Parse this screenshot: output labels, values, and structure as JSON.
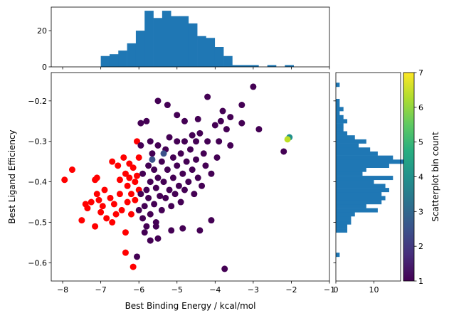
{
  "chart_data": [
    {
      "type": "scatter",
      "xlabel": "Best Binding Energy / kcal/mol",
      "ylabel": "Best Ligand Efficiency",
      "xlim": [
        -8.3,
        -1.0
      ],
      "ylim": [
        -0.645,
        -0.13
      ],
      "xticks": [
        -8,
        -7,
        -6,
        -5,
        -4,
        -3,
        -2,
        -1
      ],
      "xtick_labels": [
        "−8",
        "−7",
        "−6",
        "−5",
        "−4",
        "−3",
        "−2",
        "−1"
      ],
      "yticks": [
        -0.6,
        -0.5,
        -0.4,
        -0.3,
        -0.2
      ],
      "ytick_labels": [
        "−0.6",
        "−0.5",
        "−0.4",
        "−0.3",
        "−0.2"
      ],
      "colormap": "viridis",
      "series": [
        {
          "color": "#ff0000",
          "points": [
            [
              -7.95,
              -0.395
            ],
            [
              -7.75,
              -0.37
            ],
            [
              -7.5,
              -0.495
            ],
            [
              -7.4,
              -0.455
            ],
            [
              -7.35,
              -0.465
            ],
            [
              -7.25,
              -0.45
            ],
            [
              -7.15,
              -0.51
            ],
            [
              -7.15,
              -0.395
            ],
            [
              -7.1,
              -0.39
            ],
            [
              -7.1,
              -0.43
            ],
            [
              -7.05,
              -0.445
            ],
            [
              -7.0,
              -0.475
            ],
            [
              -6.95,
              -0.46
            ],
            [
              -6.9,
              -0.42
            ],
            [
              -6.85,
              -0.49
            ],
            [
              -6.75,
              -0.44
            ],
            [
              -6.7,
              -0.5
            ],
            [
              -6.7,
              -0.35
            ],
            [
              -6.65,
              -0.455
            ],
            [
              -6.6,
              -0.48
            ],
            [
              -6.55,
              -0.36
            ],
            [
              -6.5,
              -0.395
            ],
            [
              -6.5,
              -0.43
            ],
            [
              -6.45,
              -0.47
            ],
            [
              -6.4,
              -0.34
            ],
            [
              -6.35,
              -0.38
            ],
            [
              -6.35,
              -0.525
            ],
            [
              -6.3,
              -0.41
            ],
            [
              -6.3,
              -0.45
            ],
            [
              -6.25,
              -0.39
            ],
            [
              -6.2,
              -0.43
            ],
            [
              -6.2,
              -0.48
            ],
            [
              -6.15,
              -0.365
            ],
            [
              -6.1,
              -0.4
            ],
            [
              -6.1,
              -0.445
            ],
            [
              -6.05,
              -0.3
            ],
            [
              -6.05,
              -0.385
            ],
            [
              -6.0,
              -0.42
            ],
            [
              -6.0,
              -0.34
            ],
            [
              -6.35,
              -0.575
            ],
            [
              -6.15,
              -0.61
            ],
            [
              -6.25,
              -0.355
            ]
          ]
        },
        {
          "color": "#440154",
          "points": [
            [
              -6.0,
              -0.47
            ],
            [
              -5.95,
              -0.43
            ],
            [
              -5.9,
              -0.49
            ],
            [
              -5.9,
              -0.38
            ],
            [
              -5.85,
              -0.46
            ],
            [
              -5.8,
              -0.42
            ],
            [
              -5.8,
              -0.51
            ],
            [
              -5.75,
              -0.36
            ],
            [
              -5.75,
              -0.44
            ],
            [
              -5.7,
              -0.4
            ],
            [
              -5.7,
              -0.48
            ],
            [
              -5.65,
              -0.33
            ],
            [
              -5.6,
              -0.37
            ],
            [
              -5.6,
              -0.455
            ],
            [
              -5.55,
              -0.415
            ],
            [
              -5.55,
              -0.5
            ],
            [
              -5.5,
              -0.31
            ],
            [
              -5.5,
              -0.39
            ],
            [
              -5.45,
              -0.435
            ],
            [
              -5.4,
              -0.35
            ],
            [
              -5.4,
              -0.47
            ],
            [
              -5.35,
              -0.4
            ],
            [
              -5.3,
              -0.32
            ],
            [
              -5.3,
              -0.44
            ],
            [
              -5.25,
              -0.37
            ],
            [
              -5.2,
              -0.42
            ],
            [
              -5.2,
              -0.29
            ],
            [
              -5.15,
              -0.46
            ],
            [
              -5.1,
              -0.34
            ],
            [
              -5.1,
              -0.39
            ],
            [
              -5.05,
              -0.43
            ],
            [
              -5.0,
              -0.3
            ],
            [
              -5.0,
              -0.36
            ],
            [
              -4.95,
              -0.41
            ],
            [
              -4.9,
              -0.33
            ],
            [
              -4.9,
              -0.45
            ],
            [
              -4.85,
              -0.38
            ],
            [
              -4.8,
              -0.3
            ],
            [
              -4.8,
              -0.42
            ],
            [
              -4.75,
              -0.35
            ],
            [
              -4.7,
              -0.4
            ],
            [
              -4.65,
              -0.32
            ],
            [
              -4.6,
              -0.37
            ],
            [
              -4.55,
              -0.43
            ],
            [
              -4.5,
              -0.3
            ],
            [
              -4.5,
              -0.345
            ],
            [
              -4.45,
              -0.39
            ],
            [
              -4.4,
              -0.28
            ],
            [
              -4.35,
              -0.41
            ],
            [
              -4.3,
              -0.33
            ],
            [
              -4.25,
              -0.36
            ],
            [
              -4.2,
              -0.3
            ],
            [
              -4.1,
              -0.38
            ],
            [
              -4.0,
              -0.26
            ],
            [
              -3.95,
              -0.34
            ],
            [
              -3.9,
              -0.3
            ],
            [
              -3.85,
              -0.25
            ],
            [
              -3.7,
              -0.27
            ],
            [
              -3.6,
              -0.24
            ],
            [
              -3.6,
              -0.31
            ],
            [
              -3.3,
              -0.21
            ],
            [
              -3.0,
              -0.165
            ],
            [
              -3.3,
              -0.255
            ],
            [
              -2.85,
              -0.27
            ],
            [
              -2.2,
              -0.325
            ],
            [
              -5.5,
              -0.2
            ],
            [
              -5.25,
              -0.21
            ],
            [
              -5.0,
              -0.235
            ],
            [
              -4.8,
              -0.25
            ],
            [
              -4.6,
              -0.285
            ],
            [
              -4.45,
              -0.245
            ],
            [
              -4.2,
              -0.19
            ],
            [
              -3.8,
              -0.225
            ],
            [
              -5.5,
              -0.54
            ],
            [
              -5.7,
              -0.545
            ],
            [
              -5.85,
              -0.525
            ],
            [
              -5.55,
              -0.51
            ],
            [
              -5.15,
              -0.52
            ],
            [
              -4.85,
              -0.515
            ],
            [
              -4.4,
              -0.52
            ],
            [
              -4.1,
              -0.495
            ],
            [
              -6.05,
              -0.585
            ],
            [
              -3.75,
              -0.615
            ],
            [
              -5.95,
              -0.255
            ],
            [
              -5.8,
              -0.25
            ],
            [
              -5.7,
              -0.3
            ],
            [
              -5.95,
              -0.31
            ]
          ]
        },
        {
          "color": "#3b528b",
          "points": [
            [
              -5.65,
              -0.345
            ],
            [
              -5.35,
              -0.33
            ]
          ]
        },
        {
          "color": "#21908c",
          "points": [
            [
              -2.05,
              -0.29
            ]
          ]
        },
        {
          "color": "#bddf26",
          "points": [
            [
              -2.1,
              -0.295
            ]
          ]
        }
      ]
    },
    {
      "type": "bar",
      "orientation": "vertical",
      "bins_x": [
        -7.0,
        -6.77,
        -6.54,
        -6.31,
        -6.08,
        -5.85,
        -5.62,
        -5.39,
        -5.16,
        -4.93,
        -4.7,
        -4.47,
        -4.24,
        -4.01,
        -3.78,
        -3.55,
        -3.32,
        -3.09,
        -2.86,
        -2.63,
        -2.4,
        -2.17
      ],
      "values": [
        6,
        7,
        9,
        13,
        20,
        31,
        27,
        31,
        28,
        28,
        24,
        17,
        16,
        11,
        6,
        1,
        1,
        1,
        0,
        1,
        0,
        1
      ],
      "ylim": [
        0,
        33
      ],
      "yticks": [
        0,
        20
      ],
      "ytick_labels": [
        "0",
        "20"
      ],
      "color": "#1f77b4"
    },
    {
      "type": "bar",
      "orientation": "horizontal",
      "bins_y": [
        -0.585,
        -0.575,
        -0.565,
        -0.555,
        -0.545,
        -0.535,
        -0.525,
        -0.515,
        -0.505,
        -0.495,
        -0.485,
        -0.475,
        -0.465,
        -0.455,
        -0.445,
        -0.435,
        -0.425,
        -0.415,
        -0.405,
        -0.395,
        -0.385,
        -0.375,
        -0.365,
        -0.355,
        -0.345,
        -0.335,
        -0.325,
        -0.315,
        -0.305,
        -0.295,
        -0.285,
        -0.275,
        -0.265,
        -0.255,
        -0.245,
        -0.235,
        -0.225,
        -0.215,
        -0.205,
        -0.195,
        -0.185,
        -0.175,
        -0.165
      ],
      "values": [
        1,
        0,
        0,
        0,
        0,
        0,
        3,
        3,
        4,
        4,
        5,
        11,
        8,
        12,
        13,
        12,
        14,
        13,
        10,
        15,
        7,
        8,
        14,
        18,
        15,
        11,
        9,
        6,
        8,
        5,
        3,
        2,
        2,
        3,
        2,
        1,
        2,
        1,
        1,
        0,
        0,
        0,
        1
      ],
      "xlim": [
        0,
        17
      ],
      "xticks": [
        0,
        10
      ],
      "xtick_labels": [
        "0",
        "10"
      ],
      "color": "#1f77b4"
    },
    {
      "type": "heatmap",
      "colormap": "viridis",
      "range": [
        1,
        7
      ],
      "ticks": [
        1,
        2,
        3,
        4,
        5,
        6,
        7
      ],
      "tick_labels": [
        "1",
        "2",
        "3",
        "4",
        "5",
        "6",
        "7"
      ],
      "label": "Scatterplot bin count"
    }
  ]
}
